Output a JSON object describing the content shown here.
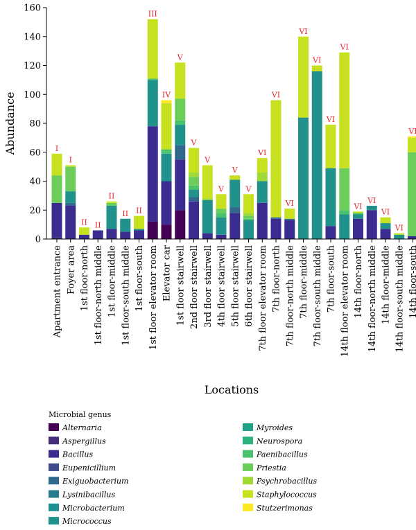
{
  "chart_data": {
    "type": "bar",
    "stacked": true,
    "xlabel": "Locations",
    "ylabel": "Abundance",
    "ylim": [
      0,
      160
    ],
    "yticks": [
      0,
      20,
      40,
      60,
      80,
      100,
      120,
      140,
      160
    ],
    "grid": false,
    "legend_title": "Microbial genus",
    "legend_position": "bottom",
    "categories": [
      "Apartment entrance",
      "Foyer area",
      "1st floor-north",
      "1st floor-north middle",
      "1st floor-middle",
      "1st floor-south middle",
      "1st floor-south",
      "1st floor elevator room",
      "Elevator car",
      "1st floor stairwell",
      "2nd floor stairwell",
      "3rd floor stairwell",
      "4th floor stairwell",
      "5th floor stairwell",
      "6th floor stairwell",
      "7th floor elevator room",
      "7th floor-north",
      "7th floor-north middle",
      "7th floor-middle",
      "7th floor-south middle",
      "7th floor-south",
      "14th floor elevator room",
      "14th floor-north",
      "14th floor-north middle",
      "14th floor-middle",
      "14th floor-south middle",
      "14th floor-south"
    ],
    "group_labels": [
      "I",
      "I",
      "II",
      "II",
      "II",
      "II",
      "II",
      "III",
      "IV",
      "V",
      "V",
      "V",
      "V",
      "V",
      "V",
      "VI",
      "VI",
      "VI",
      "VI",
      "VI",
      "VI",
      "VI",
      "VI",
      "VI",
      "VI",
      "VI",
      "VI"
    ],
    "group_label_color": "#e8262a",
    "series": [
      {
        "name": "Alternaria",
        "color": "#440154",
        "values": [
          0,
          0,
          0,
          0,
          0,
          0,
          0,
          12,
          10,
          20,
          0,
          0,
          0,
          0,
          0,
          0,
          0,
          0,
          0,
          0,
          0,
          0,
          0,
          0,
          0,
          0,
          0
        ]
      },
      {
        "name": "Aspergillus",
        "color": "#472d7b",
        "values": [
          1,
          0,
          0,
          0,
          0,
          0,
          0,
          0,
          0,
          0,
          0,
          0,
          0,
          0,
          0,
          0,
          0,
          0,
          0,
          0,
          0,
          0,
          0,
          0,
          0,
          0,
          0
        ]
      },
      {
        "name": "Bacillus",
        "color": "#3b2d8f",
        "values": [
          24,
          23,
          3,
          6,
          7,
          5,
          6,
          66,
          30,
          35,
          26,
          4,
          3,
          18,
          0,
          25,
          14,
          13,
          0,
          0,
          9,
          0,
          14,
          20,
          7,
          0,
          2
        ]
      },
      {
        "name": "Eupenicillium",
        "color": "#3e4a89",
        "values": [
          0,
          0,
          0,
          0,
          0,
          0,
          0,
          0,
          0,
          0,
          0,
          0,
          0,
          0,
          0,
          0,
          0,
          0,
          0,
          0,
          0,
          0,
          0,
          0,
          0,
          0,
          0
        ]
      },
      {
        "name": "Exiguobacterium",
        "color": "#31688e",
        "values": [
          0,
          2,
          0,
          0,
          0,
          0,
          0,
          0,
          0,
          10,
          3,
          0,
          0,
          4,
          0,
          0,
          1,
          1,
          0,
          0,
          0,
          0,
          0,
          0,
          0,
          0,
          0
        ]
      },
      {
        "name": "Lysinibacillus",
        "color": "#287c8e",
        "values": [
          0,
          0,
          0,
          0,
          0,
          0,
          0,
          0,
          0,
          0,
          0,
          0,
          0,
          0,
          0,
          0,
          0,
          0,
          0,
          0,
          0,
          0,
          0,
          0,
          0,
          0,
          0
        ]
      },
      {
        "name": "Microbacterium",
        "color": "#1f9191",
        "values": [
          0,
          0,
          0,
          0,
          0,
          0,
          0,
          0,
          0,
          0,
          0,
          0,
          0,
          0,
          0,
          0,
          0,
          0,
          0,
          0,
          0,
          0,
          0,
          0,
          0,
          0,
          0
        ]
      },
      {
        "name": "Micrococcus",
        "color": "#21918c",
        "values": [
          0,
          8,
          0,
          0,
          16,
          9,
          1,
          32,
          19,
          14,
          5,
          23,
          12,
          19,
          13,
          15,
          0,
          0,
          84,
          116,
          40,
          17,
          3,
          3,
          4,
          3,
          0
        ]
      },
      {
        "name": "Myroides",
        "color": "#1fa187",
        "values": [
          0,
          0,
          0,
          0,
          0,
          0,
          0,
          0,
          0,
          0,
          0,
          0,
          0,
          0,
          0,
          0,
          0,
          0,
          0,
          0,
          0,
          0,
          0,
          0,
          0,
          0,
          0
        ]
      },
      {
        "name": "Neurospora",
        "color": "#2db27d",
        "values": [
          0,
          0,
          0,
          0,
          0,
          0,
          0,
          0,
          0,
          0,
          0,
          0,
          0,
          0,
          0,
          0,
          0,
          0,
          0,
          0,
          0,
          0,
          0,
          0,
          0,
          0,
          0
        ]
      },
      {
        "name": "Paenibacillus",
        "color": "#4ac16d",
        "values": [
          0,
          0,
          0,
          0,
          0,
          0,
          0,
          1,
          3,
          3,
          3,
          0,
          3,
          0,
          1,
          0,
          0,
          0,
          0,
          0,
          0,
          3,
          1,
          0,
          0,
          0,
          0
        ]
      },
      {
        "name": "Priestia",
        "color": "#6ccd5a",
        "values": [
          19,
          17,
          0,
          0,
          2,
          0,
          0,
          0,
          0,
          15,
          6,
          0,
          3,
          0,
          2,
          0,
          0,
          0,
          0,
          0,
          0,
          29,
          0,
          0,
          0,
          0,
          58
        ]
      },
      {
        "name": "Psychrobacillus",
        "color": "#a0da39",
        "values": [
          0,
          0,
          0,
          0,
          0,
          0,
          0,
          0,
          0,
          0,
          3,
          1,
          0,
          0,
          2,
          6,
          0,
          0,
          0,
          0,
          0,
          0,
          0,
          0,
          0,
          0,
          0
        ]
      },
      {
        "name": "Staphylococcus",
        "color": "#c7e020",
        "values": [
          15,
          1,
          5,
          0,
          1,
          0,
          9,
          41,
          32,
          25,
          17,
          23,
          10,
          3,
          13,
          10,
          81,
          7,
          56,
          4,
          30,
          80,
          1,
          0,
          4,
          1,
          10
        ]
      },
      {
        "name": "Stutzerimonas",
        "color": "#fde725",
        "values": [
          0,
          0,
          0,
          0,
          0,
          0,
          0,
          0,
          2,
          0,
          0,
          0,
          0,
          0,
          0,
          0,
          0,
          0,
          0,
          0,
          0,
          0,
          0,
          0,
          0,
          0,
          1
        ]
      }
    ]
  }
}
